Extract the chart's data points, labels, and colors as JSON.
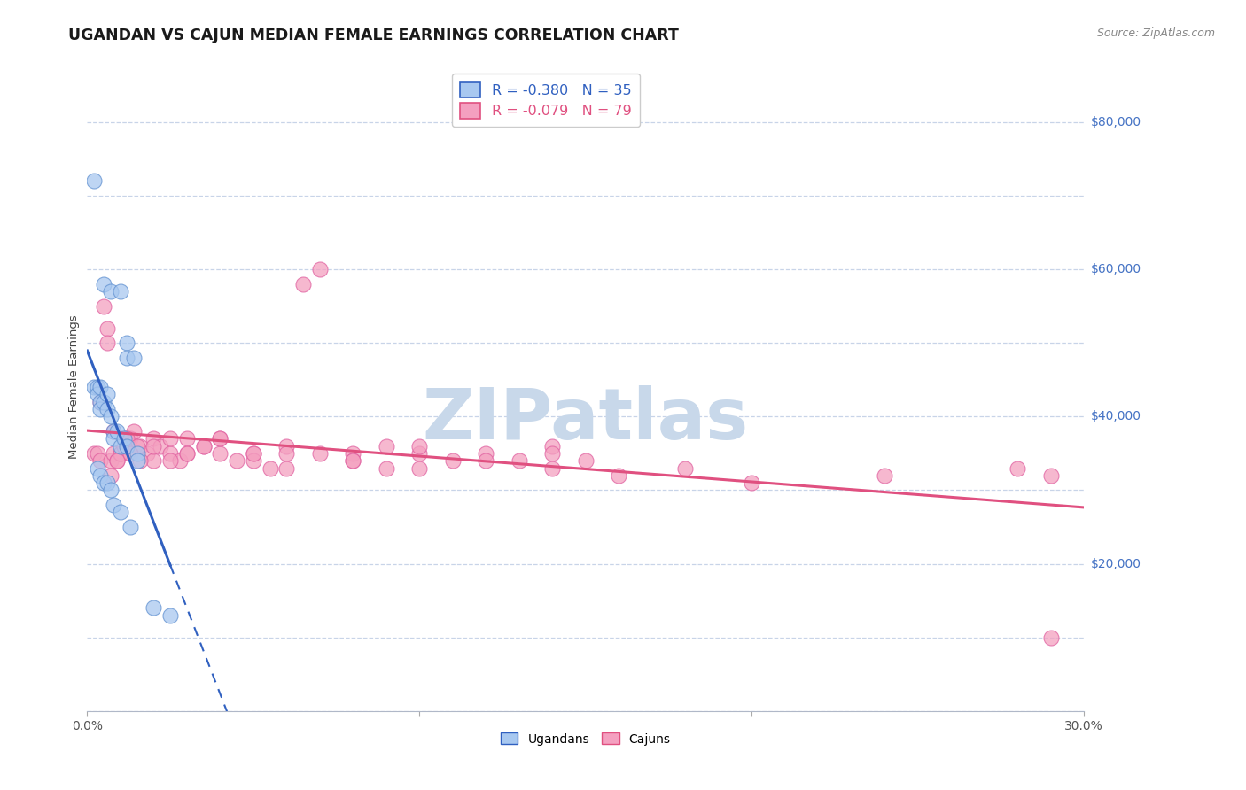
{
  "title": "UGANDAN VS CAJUN MEDIAN FEMALE EARNINGS CORRELATION CHART",
  "source": "Source: ZipAtlas.com",
  "ylabel": "Median Female Earnings",
  "xlim": [
    0.0,
    0.3
  ],
  "ylim": [
    0,
    88000
  ],
  "line_color1": "#3060c0",
  "line_color2": "#e05080",
  "scatter_color1": "#a8c8f0",
  "scatter_color2": "#f4a0c0",
  "scatter_edge1": "#6090d0",
  "scatter_edge2": "#e060a0",
  "watermark_color": "#c8d8ea",
  "legend_label1": "R = -0.380   N = 35",
  "legend_label2": "R = -0.079   N = 79",
  "legend_box_color1": "#a8c8f0",
  "legend_box_color2": "#f4a0c0",
  "legend_text_color1": "#3060c0",
  "legend_text_color2": "#e05080",
  "ytick_color": "#4472c4",
  "grid_color": "#c8d4e8",
  "ugandan_x": [
    0.005,
    0.007,
    0.01,
    0.012,
    0.012,
    0.014,
    0.002,
    0.002,
    0.003,
    0.003,
    0.004,
    0.004,
    0.004,
    0.005,
    0.006,
    0.006,
    0.007,
    0.008,
    0.008,
    0.009,
    0.01,
    0.011,
    0.012,
    0.015,
    0.015,
    0.003,
    0.004,
    0.005,
    0.006,
    0.007,
    0.008,
    0.01,
    0.013,
    0.02,
    0.025
  ],
  "ugandan_y": [
    58000,
    57000,
    57000,
    50000,
    48000,
    48000,
    72000,
    44000,
    44000,
    43000,
    44000,
    42000,
    41000,
    42000,
    43000,
    41000,
    40000,
    38000,
    37000,
    38000,
    36000,
    37000,
    36000,
    35000,
    34000,
    33000,
    32000,
    31000,
    31000,
    30000,
    28000,
    27000,
    25000,
    14000,
    13000
  ],
  "cajun_x": [
    0.002,
    0.003,
    0.004,
    0.005,
    0.006,
    0.007,
    0.008,
    0.009,
    0.01,
    0.011,
    0.012,
    0.013,
    0.014,
    0.016,
    0.018,
    0.02,
    0.022,
    0.025,
    0.028,
    0.03,
    0.035,
    0.04,
    0.045,
    0.05,
    0.055,
    0.06,
    0.065,
    0.07,
    0.08,
    0.09,
    0.1,
    0.11,
    0.12,
    0.13,
    0.14,
    0.15,
    0.004,
    0.006,
    0.008,
    0.01,
    0.012,
    0.015,
    0.02,
    0.025,
    0.03,
    0.035,
    0.04,
    0.05,
    0.06,
    0.07,
    0.08,
    0.09,
    0.1,
    0.12,
    0.14,
    0.16,
    0.18,
    0.007,
    0.009,
    0.011,
    0.013,
    0.016,
    0.02,
    0.025,
    0.03,
    0.04,
    0.05,
    0.06,
    0.08,
    0.1,
    0.14,
    0.2,
    0.24,
    0.28,
    0.29,
    0.29
  ],
  "cajun_y": [
    35000,
    35000,
    34000,
    55000,
    52000,
    34000,
    35000,
    34000,
    35000,
    37000,
    36000,
    37000,
    38000,
    36000,
    35000,
    37000,
    36000,
    35000,
    34000,
    35000,
    36000,
    37000,
    34000,
    35000,
    33000,
    36000,
    58000,
    60000,
    35000,
    36000,
    35000,
    34000,
    35000,
    34000,
    36000,
    34000,
    42000,
    50000,
    38000,
    35000,
    37000,
    36000,
    34000,
    37000,
    37000,
    36000,
    35000,
    34000,
    35000,
    35000,
    34000,
    33000,
    36000,
    34000,
    35000,
    32000,
    33000,
    32000,
    34000,
    36000,
    35000,
    34000,
    36000,
    34000,
    35000,
    37000,
    35000,
    33000,
    34000,
    33000,
    33000,
    31000,
    32000,
    33000,
    32000,
    10000
  ]
}
